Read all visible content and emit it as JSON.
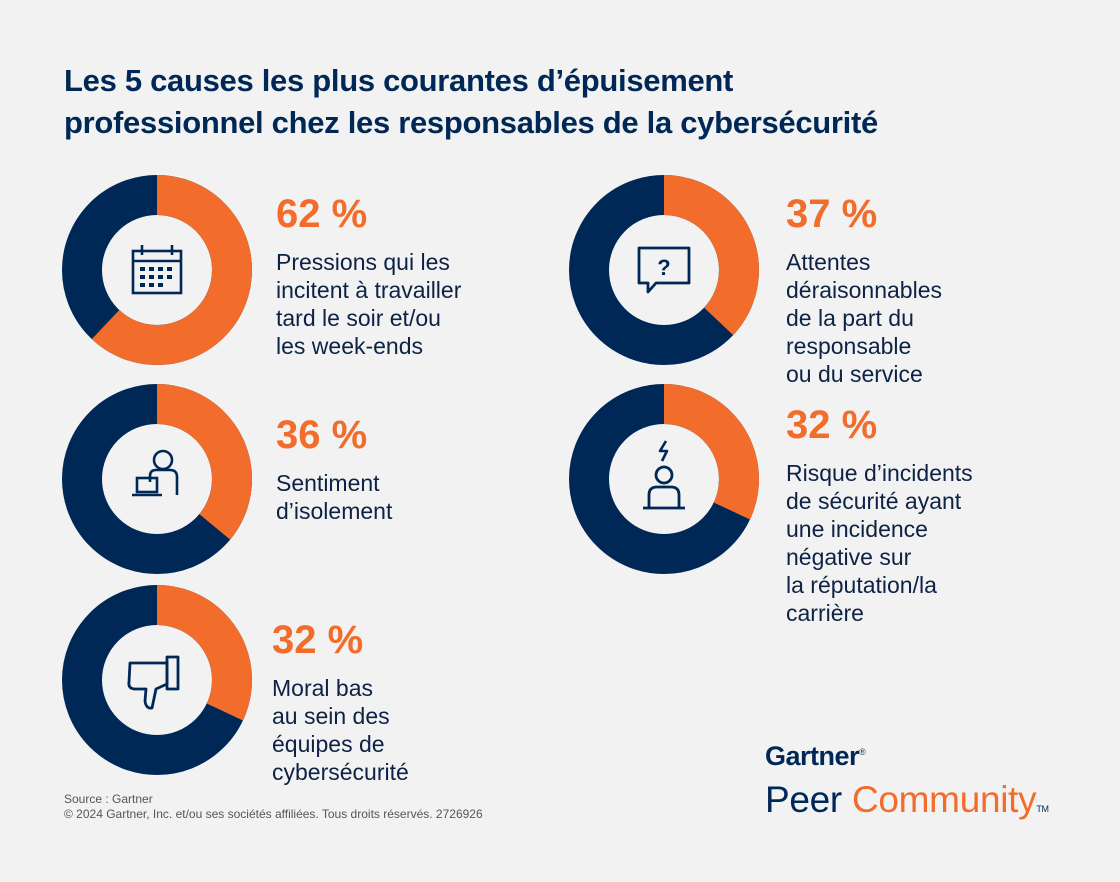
{
  "title_lines": [
    "Les 5 causes les plus courantes d’épuisement",
    "professionnel chez les responsables de la cybersécurité"
  ],
  "colors": {
    "accent": "#f26d2b",
    "navy": "#002856",
    "background": "#f2f2f2"
  },
  "chart_data": {
    "type": "pie",
    "title": "Les 5 causes les plus courantes d’épuisement professionnel chez les responsables de la cybersécurité",
    "unit": "%",
    "items": [
      {
        "value": 62,
        "label": "62 %",
        "description": "Pressions qui les\nincitent à travailler\ntard le soir et/ou\nles week-ends",
        "icon": "calendar-icon"
      },
      {
        "value": 36,
        "label": "36 %",
        "description": "Sentiment\nd’isolement",
        "icon": "person-at-desk-icon"
      },
      {
        "value": 32,
        "label": "32 %",
        "description": "Moral bas\nau sein des\néquipes de\ncybersécurité",
        "icon": "thumbs-down-icon"
      },
      {
        "value": 37,
        "label": "37 %",
        "description": "Attentes\ndéraisonnables\nde la part du\nresponsable\nou du service",
        "icon": "question-bubble-icon"
      },
      {
        "value": 32,
        "label": "32 %",
        "description": "Risque d’incidents\nde sécurité ayant\nune incidence\nnégative sur\nla réputation/la\ncarrière",
        "icon": "alert-person-icon"
      }
    ]
  },
  "footer": {
    "source": "Source : Gartner",
    "copyright": "© 2024 Gartner, Inc. et/ou ses sociétés affiliées. Tous droits réservés. 2726926"
  },
  "brand": {
    "gartner": "Gartner",
    "peer": "Peer",
    "community": "Community",
    "tm": "TM"
  }
}
